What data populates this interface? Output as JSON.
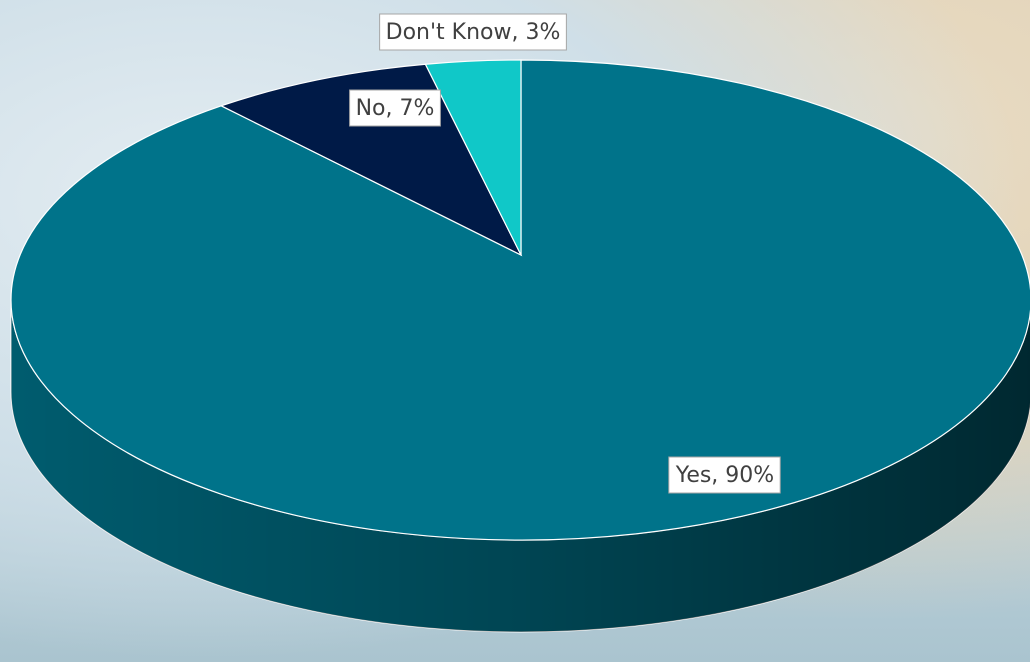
{
  "chart_data": {
    "type": "pie3d",
    "values": [
      90,
      7,
      3
    ],
    "value_labels": [
      "Yes, 90%",
      "No, 7%",
      "Don't Know, 3%"
    ],
    "colors": [
      "#00738a",
      "#001a47",
      "#10c8c8"
    ]
  }
}
